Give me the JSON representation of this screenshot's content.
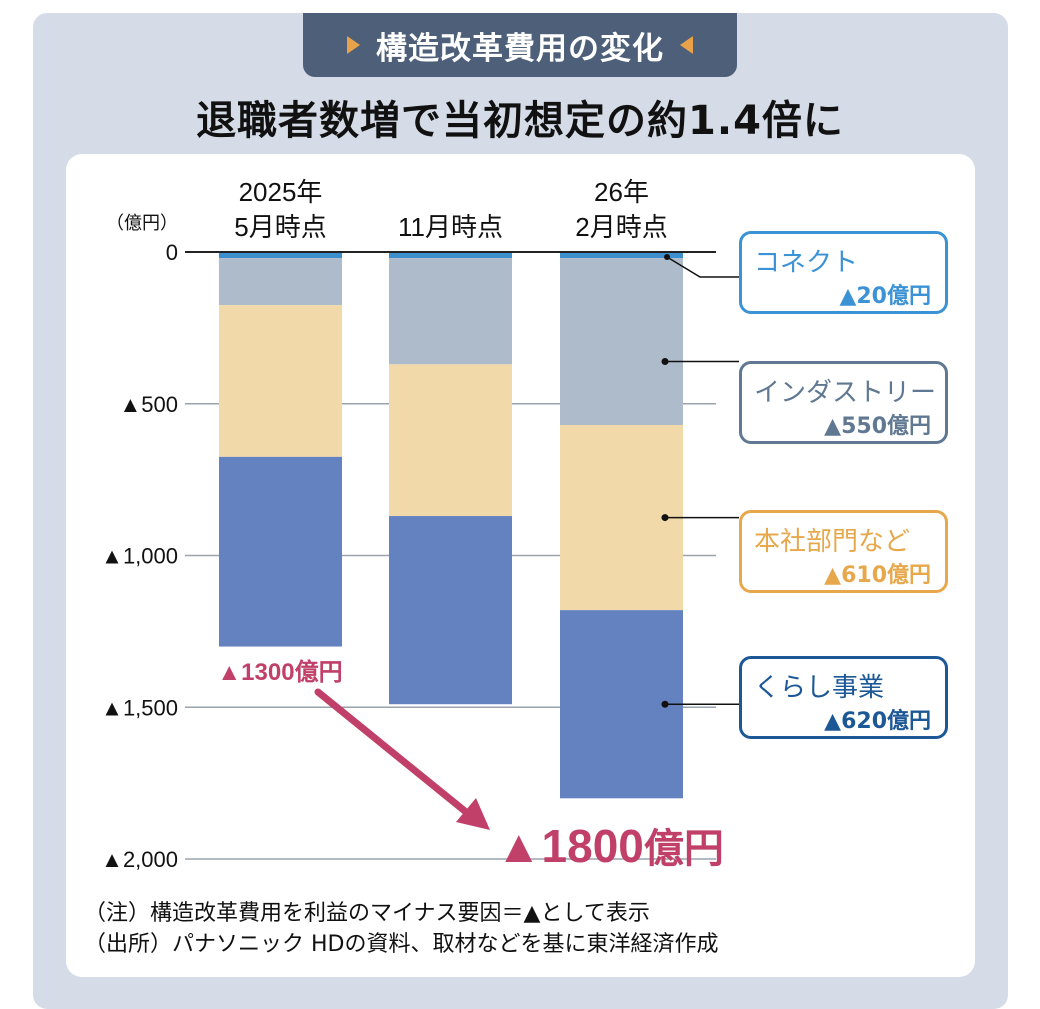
{
  "header": {
    "tag": "構造改革費用の変化",
    "headline": "退職者数増で当初想定の約1.4倍に"
  },
  "chart_data": {
    "type": "bar",
    "stacked": true,
    "unit_label": "（億円）",
    "categories": [
      [
        "2025年",
        "5月時点"
      ],
      [
        "11月時点"
      ],
      [
        "26年",
        "2月時点"
      ]
    ],
    "series": [
      {
        "name": "コネクト",
        "values": [
          20,
          20,
          20
        ],
        "color": "#3d8fce"
      },
      {
        "name": "インダストリー",
        "values": [
          155,
          350,
          550
        ],
        "color": "#aebbca"
      },
      {
        "name": "本社部門など",
        "values": [
          500,
          500,
          610
        ],
        "color": "#f1d9aa"
      },
      {
        "name": "くらし事業",
        "values": [
          625,
          620,
          620
        ],
        "color": "#6482bf"
      }
    ],
    "totals": [
      1300,
      1490,
      1800
    ],
    "ylim": [
      0,
      2000
    ],
    "yticks": [
      {
        "value": 0,
        "label": "0"
      },
      {
        "value": 500,
        "label": "▲500"
      },
      {
        "value": 1000,
        "label": "▲1,000"
      },
      {
        "value": 1500,
        "label": "▲1,500"
      },
      {
        "value": 2000,
        "label": "▲2,000"
      }
    ],
    "grid": true,
    "callouts": [
      {
        "name": "コネクト",
        "value": "▲20億円",
        "color": "#3b92d4",
        "series": 0
      },
      {
        "name": "インダストリー",
        "value": "▲550億円",
        "color": "#607891",
        "series": 1
      },
      {
        "name": "本社部門など",
        "value": "▲610億円",
        "color": "#e7a84c",
        "series": 2
      },
      {
        "name": "くらし事業",
        "value": "▲620億円",
        "color": "#1c5796",
        "series": 3
      }
    ],
    "annotations": {
      "initial": "▲1300億円",
      "final_number": "▲1800",
      "final_unit": "億円",
      "accent_color": "#c0406a"
    }
  },
  "notes": [
    "（注）構造改革費用を利益のマイナス要因＝▲として表示",
    "（出所）パナソニック HDの資料、取材などを基に東洋経済作成"
  ]
}
